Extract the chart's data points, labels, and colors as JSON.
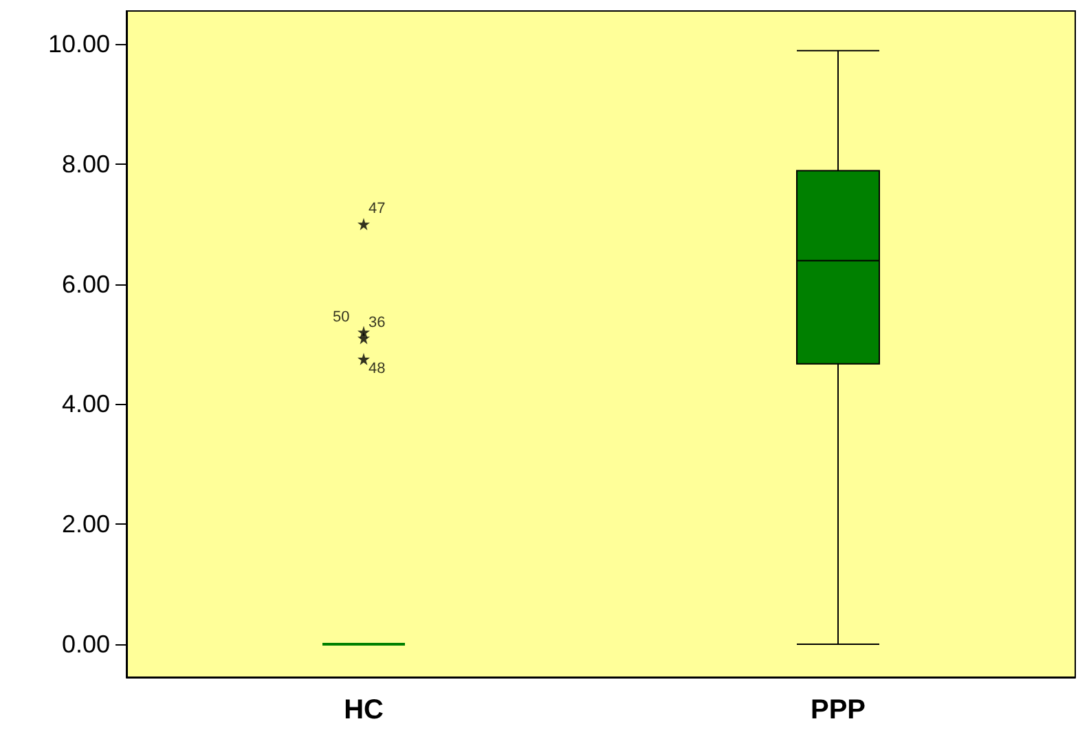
{
  "chart_data": {
    "type": "box",
    "categories": [
      "HC",
      "PPP"
    ],
    "series": [
      {
        "color": "#008000",
        "boxes": [
          {
            "low": 0,
            "q1": 0,
            "median": 0,
            "q3": 0,
            "high": 0
          },
          {
            "low": 0,
            "q1": 4.67,
            "median": 6.39,
            "q3": 7.89,
            "high": 9.89
          }
        ]
      },
      {
        "type": "scatter",
        "color": "#000000",
        "x": [
          "HC",
          "HC",
          "HC",
          "HC"
        ],
        "values": [
          7.0,
          5.2,
          5.1,
          4.75
        ]
      }
    ],
    "ylim": [
      -0.55,
      10.55
    ],
    "yticks": [
      {
        "value": 0,
        "label": "0.00"
      },
      {
        "value": 2,
        "label": "2.00"
      },
      {
        "value": 4,
        "label": "4.00"
      },
      {
        "value": 6,
        "label": "6.00"
      },
      {
        "value": 8,
        "label": "8.00"
      },
      {
        "value": 10,
        "label": "10.00"
      }
    ],
    "marker": "star",
    "grid": false,
    "annotations": [
      {
        "text": "47",
        "x": "HC",
        "y": 7.0
      },
      {
        "text": "50",
        "x": "HC",
        "y": 5.2
      },
      {
        "text": "36",
        "x": "HC",
        "y": 5.1
      },
      {
        "text": "48",
        "x": "HC",
        "y": 4.75
      }
    ]
  }
}
